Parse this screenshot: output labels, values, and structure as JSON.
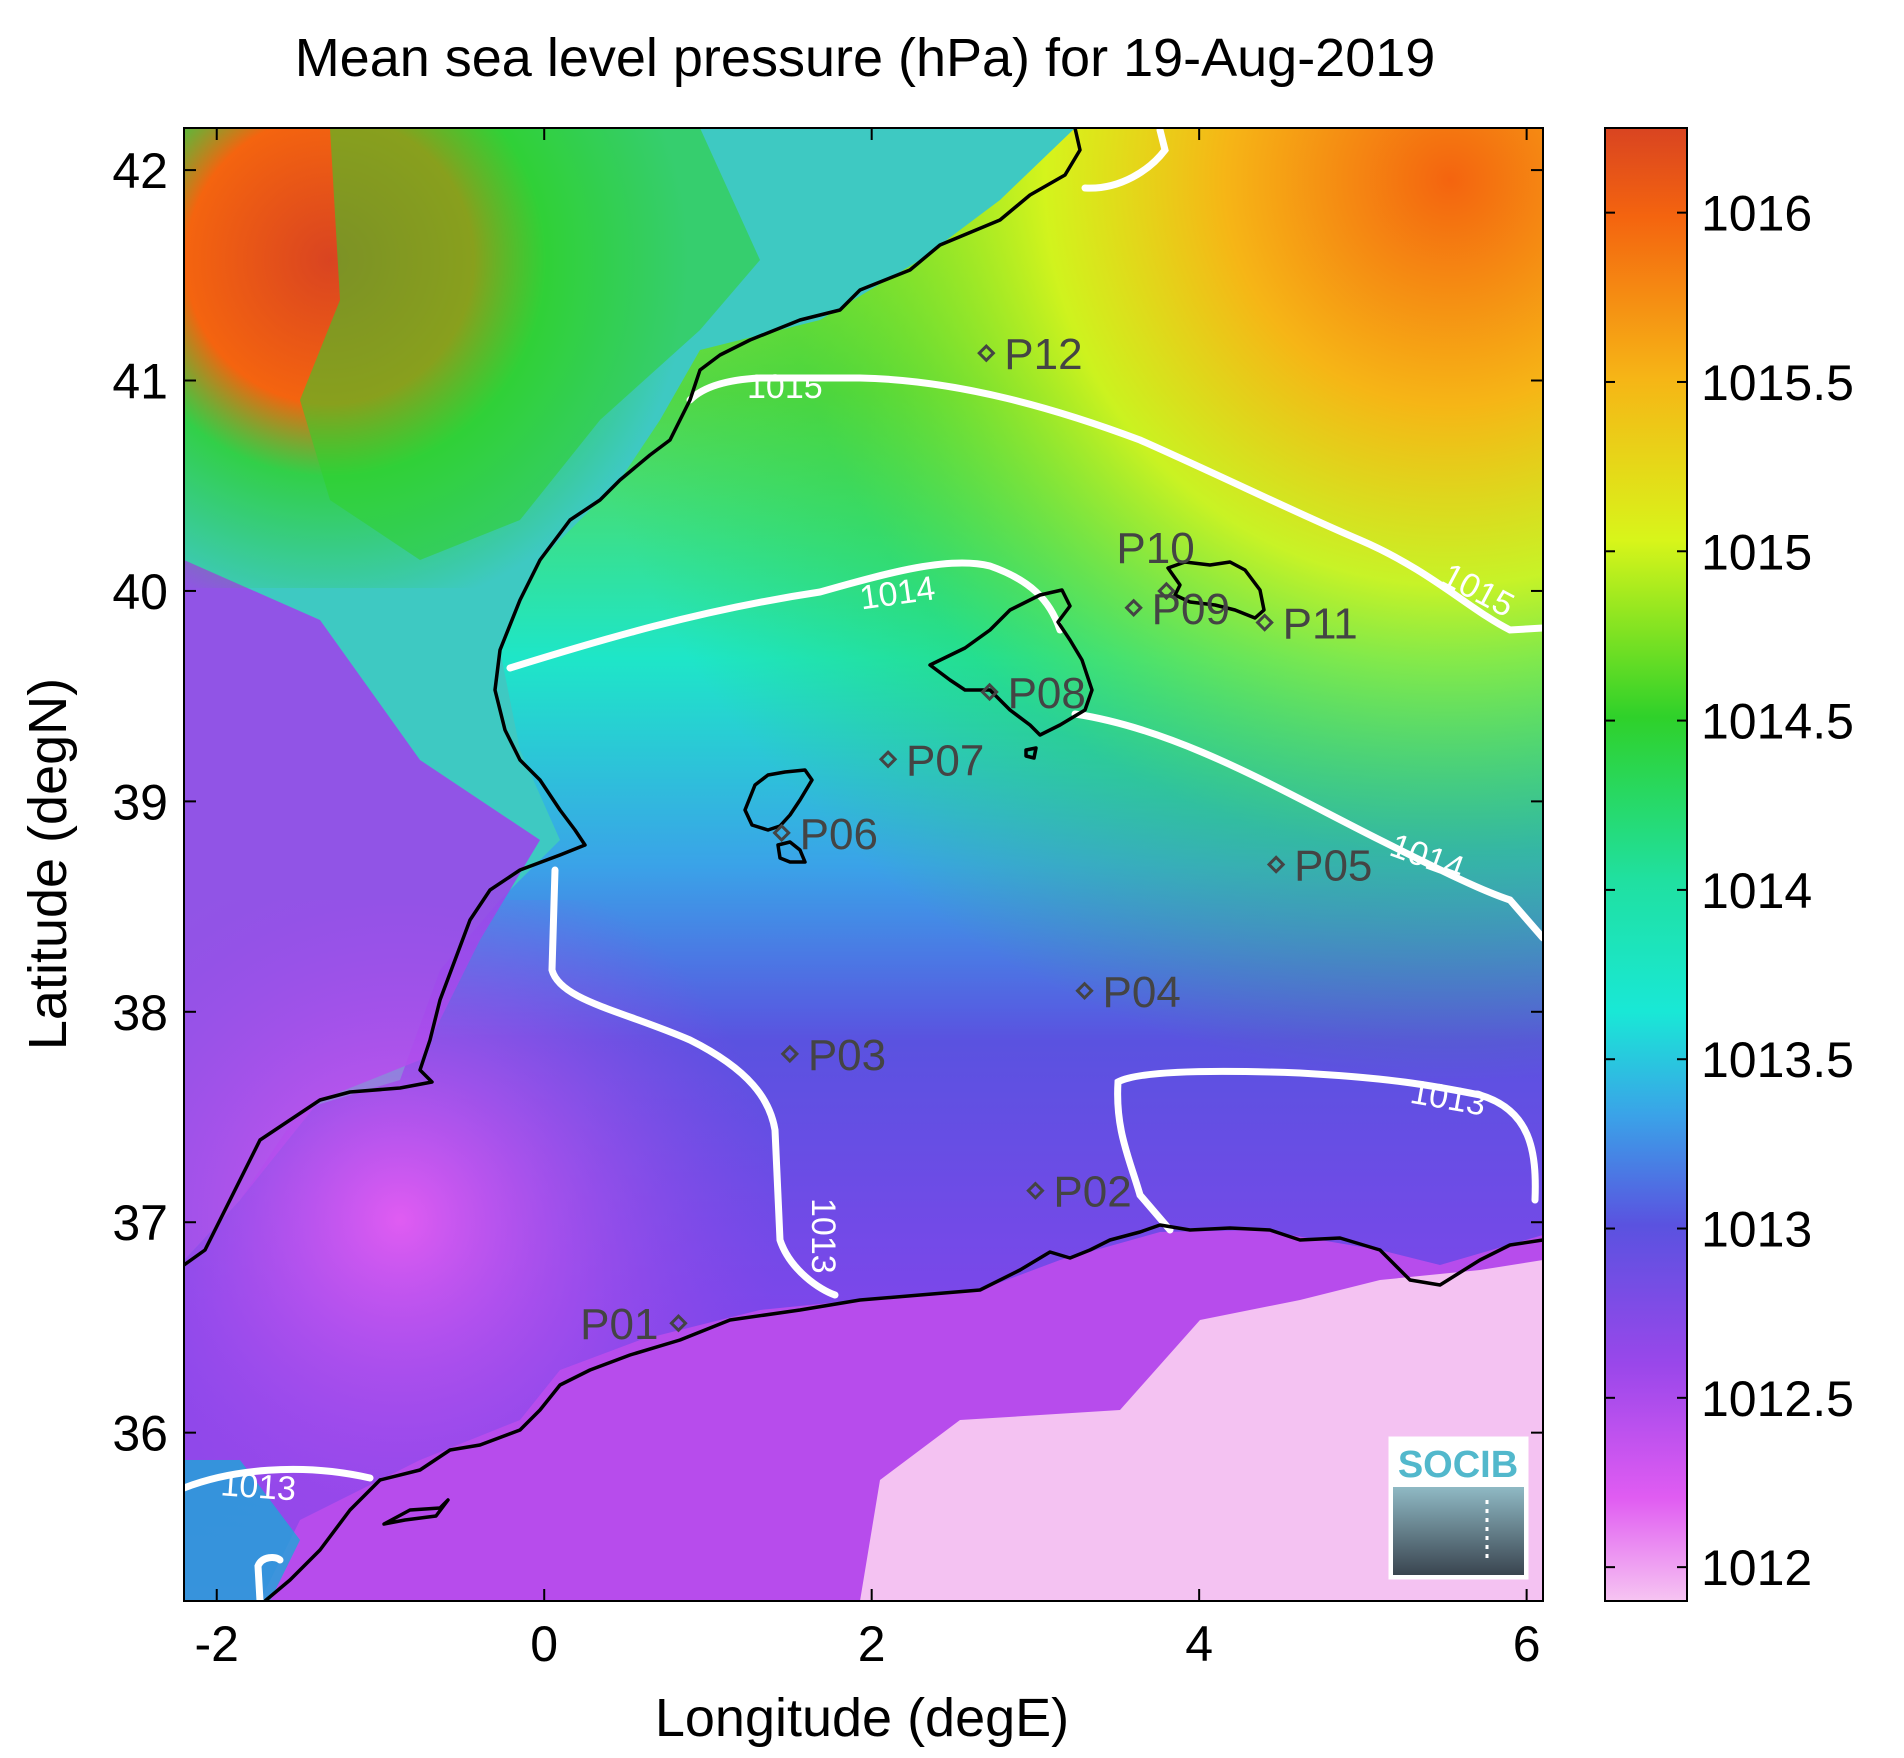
{
  "title": "Mean sea level pressure (hPa) for 19-Aug-2019",
  "xlabel": "Longitude (degE)",
  "ylabel": "Latitude (degN)",
  "x_ticks": [
    "-2",
    "0",
    "2",
    "4",
    "6"
  ],
  "y_ticks": [
    "36",
    "37",
    "38",
    "39",
    "40",
    "41",
    "42"
  ],
  "colorbar": {
    "ticks": [
      "1012",
      "1012.5",
      "1013",
      "1013.5",
      "1014",
      "1014.5",
      "1015",
      "1015.5",
      "1016"
    ],
    "stops": [
      {
        "value": 1011.9,
        "color": "#f6c4f2"
      },
      {
        "value": 1012.2,
        "color": "#e05cf2"
      },
      {
        "value": 1012.6,
        "color": "#9a47ea"
      },
      {
        "value": 1013.0,
        "color": "#5a52e0"
      },
      {
        "value": 1013.3,
        "color": "#3aa3e8"
      },
      {
        "value": 1013.6,
        "color": "#19e8d6"
      },
      {
        "value": 1014.0,
        "color": "#20e0a0"
      },
      {
        "value": 1014.5,
        "color": "#2fd12a"
      },
      {
        "value": 1015.0,
        "color": "#d8f51a"
      },
      {
        "value": 1015.5,
        "color": "#f6b516"
      },
      {
        "value": 1016.0,
        "color": "#f4640f"
      },
      {
        "value": 1016.25,
        "color": "#d94421"
      }
    ]
  },
  "chart_data": {
    "type": "heatmap",
    "title": "Mean sea level pressure (hPa) for 19-Aug-2019",
    "xlabel": "Longitude (degE)",
    "ylabel": "Latitude (degN)",
    "xlim": [
      -2.2,
      6.1
    ],
    "ylim": [
      35.2,
      42.2
    ],
    "color_range": [
      1011.9,
      1016.25
    ],
    "contour_levels": [
      {
        "level": 1013,
        "label": "1013"
      },
      {
        "level": 1014,
        "label": "1014"
      },
      {
        "level": 1015,
        "label": "1015"
      }
    ],
    "stations": [
      {
        "name": "P01",
        "lon": 0.82,
        "lat": 36.52
      },
      {
        "name": "P02",
        "lon": 3.0,
        "lat": 37.15
      },
      {
        "name": "P03",
        "lon": 1.5,
        "lat": 37.8
      },
      {
        "name": "P04",
        "lon": 3.3,
        "lat": 38.1
      },
      {
        "name": "P05",
        "lon": 4.47,
        "lat": 38.7
      },
      {
        "name": "P06",
        "lon": 1.45,
        "lat": 38.85
      },
      {
        "name": "P07",
        "lon": 2.1,
        "lat": 39.2
      },
      {
        "name": "P08",
        "lon": 2.72,
        "lat": 39.52
      },
      {
        "name": "P09",
        "lon": 3.6,
        "lat": 39.92
      },
      {
        "name": "P10",
        "lon": 3.8,
        "lat": 40.0
      },
      {
        "name": "P11",
        "lon": 4.4,
        "lat": 39.85
      },
      {
        "name": "P12",
        "lon": 2.7,
        "lat": 41.13
      }
    ],
    "logo": "SOCIB"
  }
}
